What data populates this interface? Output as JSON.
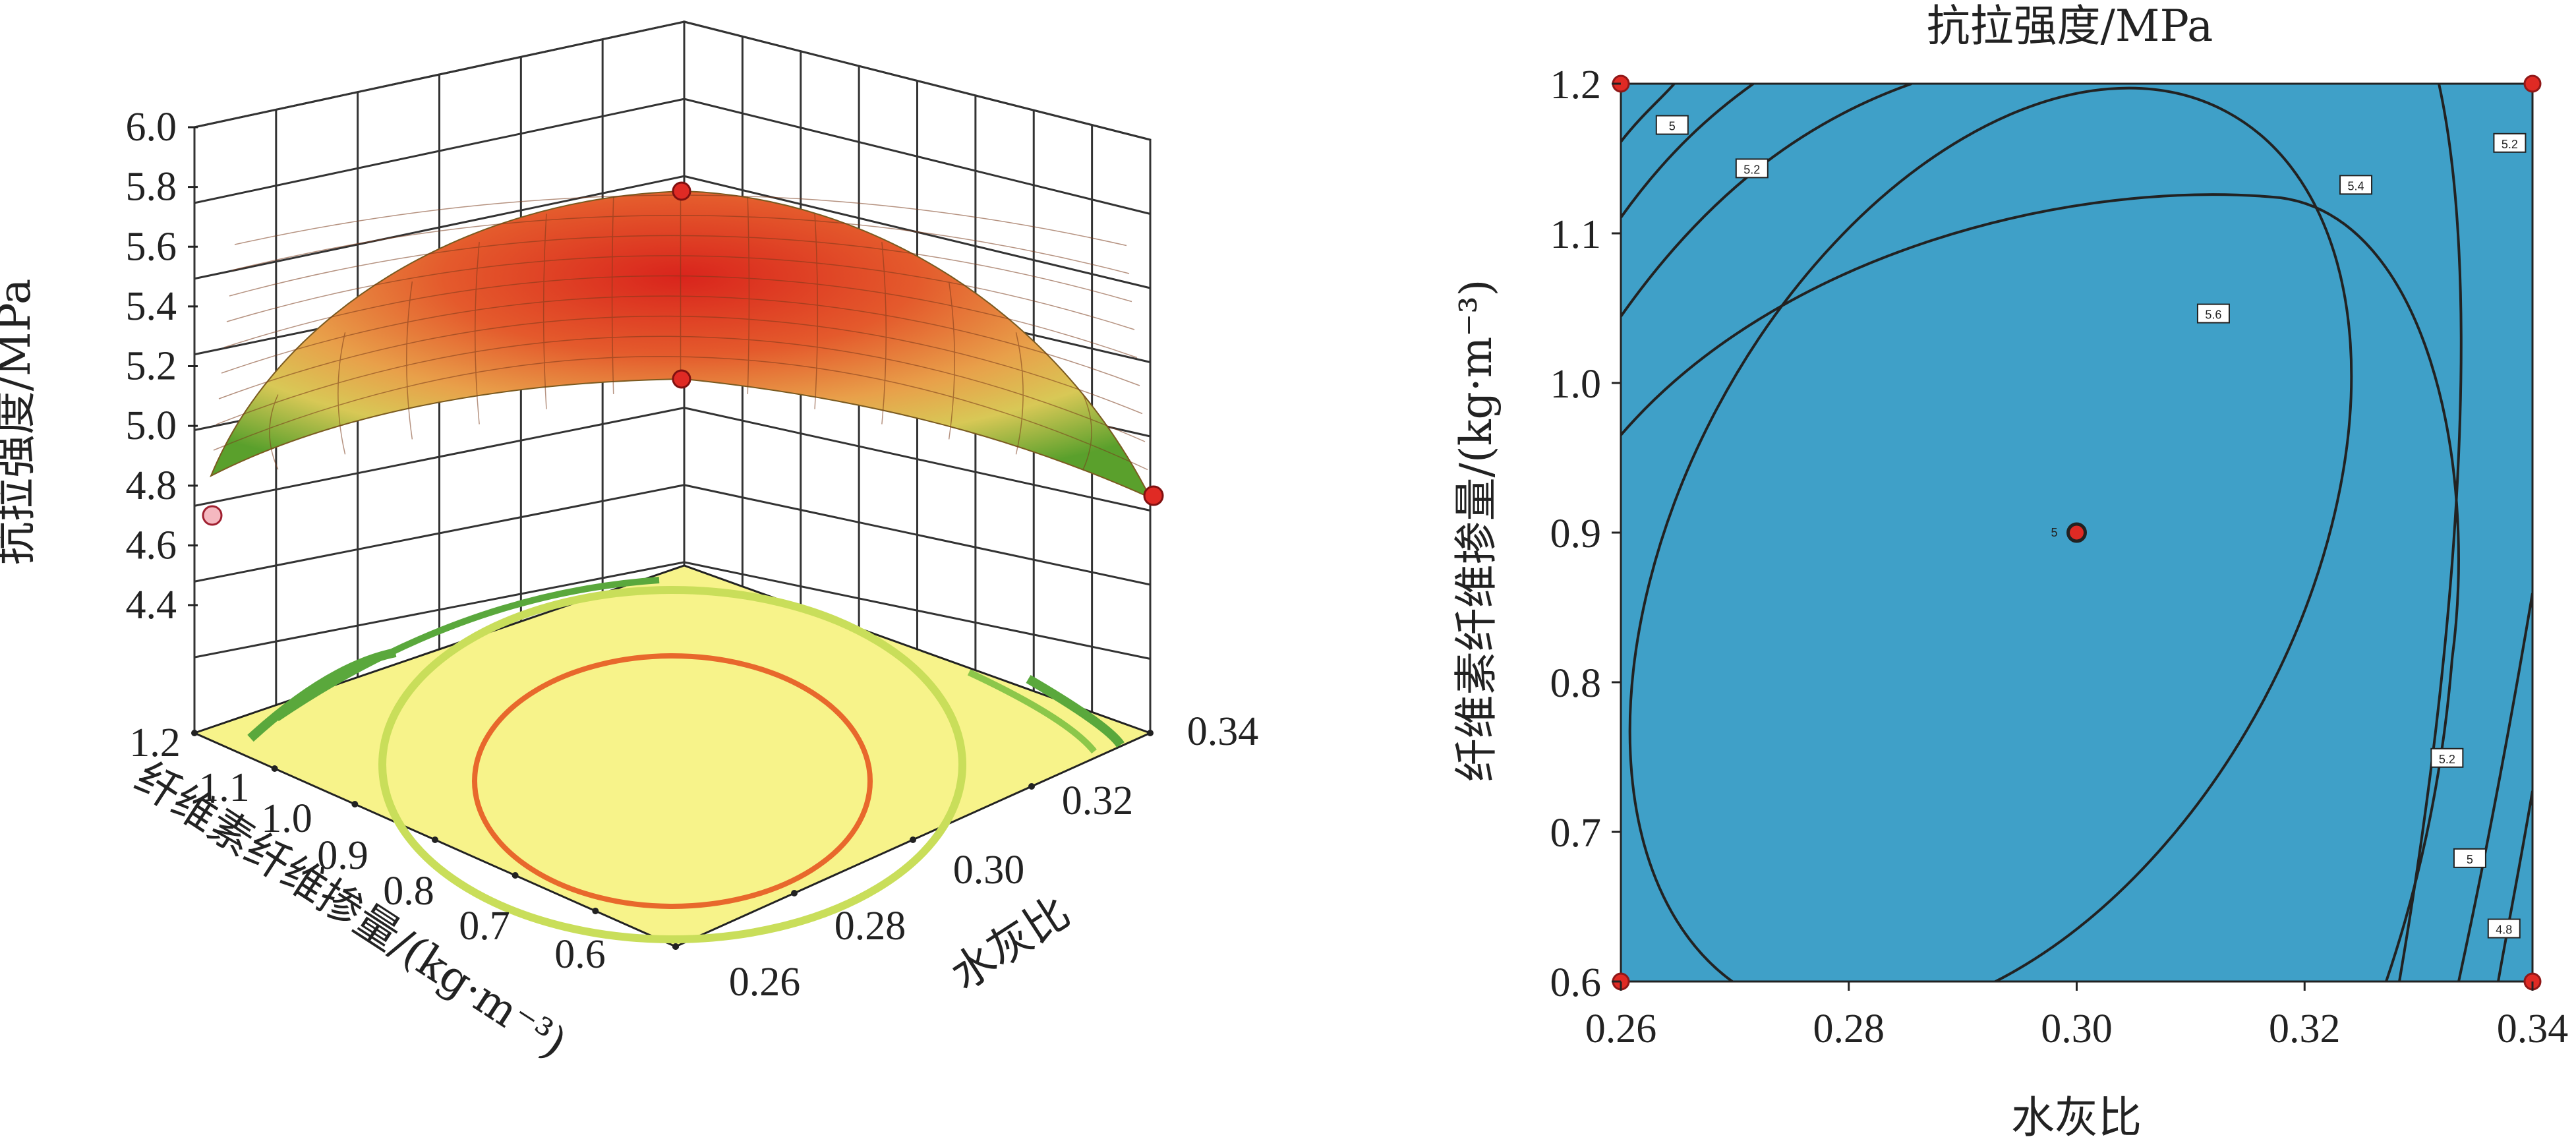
{
  "chart_data": [
    {
      "type": "surface",
      "zlabel": "抗拉强度/MPa",
      "xlabel": "水灰比",
      "ylabel": "纤维素纤维掺量/(kg·m⁻³)",
      "x_ticks": [
        "0.26",
        "0.28",
        "0.30",
        "0.32",
        "0.34"
      ],
      "y_ticks": [
        "1.2",
        "1.1",
        "1.0",
        "0.9",
        "0.8",
        "0.7",
        "0.6"
      ],
      "z_ticks": [
        "4.4",
        "4.6",
        "4.8",
        "5.0",
        "5.2",
        "5.4",
        "5.6",
        "5.8",
        "6.0"
      ],
      "xlim": [
        0.26,
        0.34
      ],
      "ylim": [
        0.6,
        1.2
      ],
      "zlim": [
        4.4,
        6.0
      ],
      "corner_values": [
        {
          "x": 0.26,
          "y": 1.2,
          "z": 4.67
        },
        {
          "x": 0.34,
          "y": 0.6,
          "z": 4.69
        },
        {
          "x": 0.26,
          "y": 0.6,
          "z": 5.12
        },
        {
          "x": 0.3,
          "y": 0.9,
          "z": 5.76
        }
      ]
    },
    {
      "type": "contour",
      "title": "抗拉强度/MPa",
      "xlabel": "水灰比",
      "ylabel": "纤维素纤维掺量/(kg·m⁻³)",
      "x_ticks": [
        "0.26",
        "0.28",
        "0.30",
        "0.32",
        "0.34"
      ],
      "y_ticks": [
        "0.6",
        "0.7",
        "0.8",
        "0.9",
        "1.0",
        "1.1",
        "1.2"
      ],
      "xlim": [
        0.26,
        0.34
      ],
      "ylim": [
        0.6,
        1.2
      ],
      "contour_labels": [
        {
          "x": 0.2645,
          "y": 1.172,
          "value": "5"
        },
        {
          "x": 0.2715,
          "y": 1.143,
          "value": "5.2"
        },
        {
          "x": 0.3245,
          "y": 1.132,
          "value": "5.4"
        },
        {
          "x": 0.312,
          "y": 1.046,
          "value": "5.6"
        },
        {
          "x": 0.338,
          "y": 1.16,
          "value": "5.2"
        },
        {
          "x": 0.3325,
          "y": 0.749,
          "value": "5.2"
        },
        {
          "x": 0.3345,
          "y": 0.682,
          "value": "5"
        },
        {
          "x": 0.3375,
          "y": 0.635,
          "value": "4.8"
        }
      ],
      "design_points": [
        {
          "x": 0.26,
          "y": 0.6
        },
        {
          "x": 0.26,
          "y": 1.2
        },
        {
          "x": 0.34,
          "y": 0.6
        },
        {
          "x": 0.34,
          "y": 1.2
        },
        {
          "x": 0.3,
          "y": 0.9
        }
      ],
      "center_label": "5"
    }
  ]
}
